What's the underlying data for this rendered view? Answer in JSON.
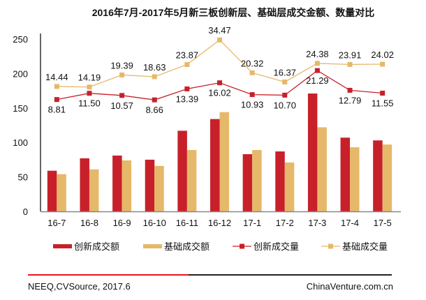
{
  "chart_data": {
    "type": "bar",
    "title": "2016年7月-2017年5月新三板创新层、基础层成交金额、数量对比",
    "categories": [
      "16-7",
      "16-8",
      "16-9",
      "16-10",
      "16-11",
      "16-12",
      "17-1",
      "17-2",
      "17-3",
      "17-4",
      "17-5"
    ],
    "yticks": [
      "0",
      "50",
      "100",
      "150",
      "200",
      "250"
    ],
    "ylim": [
      0,
      250
    ],
    "xlabel": "",
    "ylabel": "",
    "grid": false,
    "legend_position": "bottom",
    "series": [
      {
        "name": "创新成交额",
        "kind": "bar",
        "axis": "primary",
        "color": "#C8202A",
        "values": [
          59,
          77,
          81,
          75,
          117,
          134,
          83,
          87,
          171,
          107,
          103
        ]
      },
      {
        "name": "基础成交额",
        "kind": "bar",
        "axis": "primary",
        "color": "#E6B86A",
        "values": [
          54,
          61,
          74,
          66,
          89,
          144,
          89,
          71,
          122,
          93,
          97
        ]
      },
      {
        "name": "创新成交量",
        "kind": "line",
        "axis": "secondary",
        "color": "#C8202A",
        "values": [
          8.81,
          11.5,
          10.57,
          8.66,
          13.39,
          16.02,
          10.93,
          10.7,
          21.29,
          12.79,
          11.55
        ],
        "labels": [
          "8.81",
          "11.50",
          "10.57",
          "8.66",
          "13.39",
          "16.02",
          "10.93",
          "10.70",
          "21.29",
          "12.79",
          "11.55"
        ],
        "label_pos": [
          "below",
          "below",
          "below",
          "below",
          "below",
          "below",
          "below",
          "below",
          "below",
          "below",
          "below"
        ]
      },
      {
        "name": "基础成交量",
        "kind": "line",
        "axis": "secondary",
        "color": "#E6B86A",
        "values": [
          14.44,
          14.19,
          19.39,
          18.63,
          23.87,
          34.47,
          20.32,
          16.37,
          24.38,
          23.91,
          24.02
        ],
        "labels": [
          "14.44",
          "14.19",
          "19.39",
          "18.63",
          "23.87",
          "34.47",
          "20.32",
          "16.37",
          "24.38",
          "23.91",
          "24.02"
        ],
        "label_pos": [
          "above",
          "above",
          "above",
          "above",
          "above",
          "above",
          "above",
          "above",
          "above",
          "above",
          "above"
        ]
      }
    ]
  },
  "footer": {
    "source": "NEEQ,CVSource, 2017.6",
    "brand": "ChinaVenture.com.cn"
  }
}
